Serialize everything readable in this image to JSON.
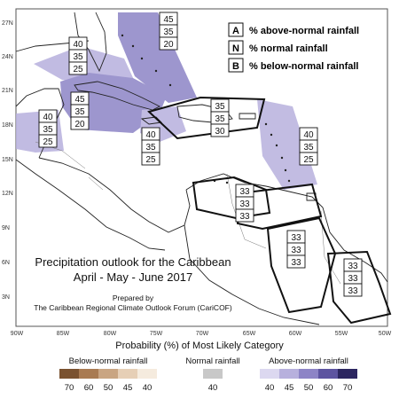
{
  "legend_key": [
    {
      "letter": "A",
      "text": "% above-normal rainfall"
    },
    {
      "letter": "N",
      "text": "% normal rainfall"
    },
    {
      "letter": "B",
      "text": "% below-normal rainfall"
    }
  ],
  "title": {
    "line1": "Precipitation outlook for the Caribbean",
    "line2": "April - May - June 2017",
    "prepared": "Prepared by",
    "forum": "The Caribbean Regional Climate Outlook Forum (CariCOF)"
  },
  "lat_labels": [
    "27N",
    "24N",
    "21N",
    "18N",
    "15N",
    "12N",
    "9N",
    "6N",
    "3N"
  ],
  "lon_labels": [
    "90W",
    "85W",
    "80W",
    "75W",
    "70W",
    "65W",
    "60W",
    "55W",
    "50W"
  ],
  "regions": [
    {
      "name": "bahamas",
      "values": [
        "45",
        "35",
        "20"
      ]
    },
    {
      "name": "gulf",
      "values": [
        "40",
        "35",
        "25"
      ]
    },
    {
      "name": "cuba",
      "values": [
        "45",
        "35",
        "20"
      ]
    },
    {
      "name": "central-america",
      "values": [
        "40",
        "35",
        "25"
      ]
    },
    {
      "name": "jamaica",
      "values": [
        "40",
        "35",
        "25"
      ]
    },
    {
      "name": "hispaniola",
      "values": [
        "35",
        "35",
        "30"
      ]
    },
    {
      "name": "lesser-antilles",
      "values": [
        "40",
        "35",
        "25"
      ]
    },
    {
      "name": "abc-islands",
      "values": [
        "33",
        "33",
        "33"
      ]
    },
    {
      "name": "guyana",
      "values": [
        "33",
        "33",
        "33"
      ]
    },
    {
      "name": "french-guiana",
      "values": [
        "33",
        "33",
        "33"
      ]
    }
  ],
  "probability_title": "Probability (%) of Most Likely Category",
  "legend": {
    "below": {
      "title": "Below-normal rainfall",
      "labels": [
        "70",
        "60",
        "50",
        "45",
        "40"
      ],
      "colors": [
        "#7a5230",
        "#a97b52",
        "#c9a582",
        "#e6cfb6",
        "#f5ebde"
      ]
    },
    "normal": {
      "title": "Normal rainfall",
      "labels": [
        "40"
      ],
      "colors": [
        "#c8c8c8"
      ]
    },
    "above": {
      "title": "Above-normal rainfall",
      "labels": [
        "40",
        "45",
        "50",
        "60",
        "70"
      ],
      "colors": [
        "#dcd8f0",
        "#b7b0dd",
        "#8d84c6",
        "#5d54a0",
        "#2c2660"
      ]
    }
  }
}
